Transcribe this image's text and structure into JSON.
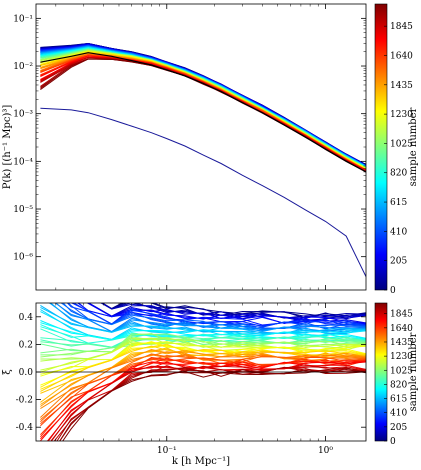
{
  "chart_data": [
    {
      "type": "line",
      "panel": "power-spectrum",
      "title": "",
      "xlabel": "",
      "ylabel": "P(k) [(h⁻¹ Mpc)³]",
      "xscale": "log",
      "yscale": "log",
      "xlim": [
        0.015,
        1.8
      ],
      "ylim": [
        2e-07,
        0.2
      ],
      "x_tick_labels": [],
      "y_tick_labels": [
        "10⁻⁶",
        "10⁻⁵",
        "10⁻⁴",
        "10⁻³",
        "10⁻²",
        "10⁻¹"
      ],
      "y_tick_values": [
        1e-06,
        1e-05,
        0.0001,
        0.001,
        0.01,
        0.1
      ],
      "k": [
        0.016,
        0.025,
        0.032,
        0.045,
        0.06,
        0.08,
        0.1,
        0.13,
        0.17,
        0.22,
        0.3,
        0.4,
        0.55,
        0.75,
        1.0,
        1.35,
        1.8
      ],
      "reference_sample_Pk": [
        0.012,
        0.016,
        0.019,
        0.016,
        0.013,
        0.0105,
        0.0083,
        0.0062,
        0.0043,
        0.0029,
        0.0017,
        0.00105,
        0.00058,
        0.00032,
        0.00018,
        0.0001,
        6e-05
      ],
      "outlier_sample_Pk": [
        0.0013,
        0.0012,
        0.00105,
        0.00075,
        0.00055,
        0.0004,
        0.0003,
        0.00021,
        0.000135,
        9e-05,
        5.1e-05,
        3.1e-05,
        1.75e-05,
        9.5e-06,
        5.5e-06,
        2.7e-06,
        3.8e-07
      ],
      "series_count_shown": 70,
      "color_encoding": "sample number",
      "grid": false,
      "legend": "none"
    },
    {
      "type": "line",
      "panel": "relative-deviation",
      "title": "",
      "xlabel": "k [h Mpc⁻¹]",
      "ylabel": "ξ",
      "xscale": "log",
      "xlim": [
        0.015,
        1.8
      ],
      "ylim": [
        -0.5,
        0.5
      ],
      "x_tick_labels": [
        "10⁻¹",
        "10⁰"
      ],
      "x_tick_values": [
        0.1,
        1.0
      ],
      "y_tick_labels": [
        "0.4",
        "0.2",
        "0.0",
        "-0.2",
        "-0.4"
      ],
      "y_tick_values": [
        0.4,
        0.2,
        0.0,
        -0.2,
        -0.4
      ],
      "reference_line_y": 0.0,
      "series_count_shown": 70,
      "color_encoding": "sample number",
      "grid": false,
      "legend": "none"
    }
  ],
  "colorbar": {
    "label": "sample number",
    "min": 0,
    "max": 2000,
    "tick_labels": [
      "0",
      "205",
      "410",
      "615",
      "820",
      "1025",
      "1230",
      "1435",
      "1640",
      "1845"
    ],
    "tick_values": [
      0,
      205,
      410,
      615,
      820,
      1025,
      1230,
      1435,
      1640,
      1845
    ],
    "colormap": "jet",
    "colormap_stops": [
      "#00007f",
      "#0000ff",
      "#007fff",
      "#00ffff",
      "#7fff7f",
      "#ffff00",
      "#ff7f00",
      "#ff0000",
      "#7f0000"
    ]
  }
}
